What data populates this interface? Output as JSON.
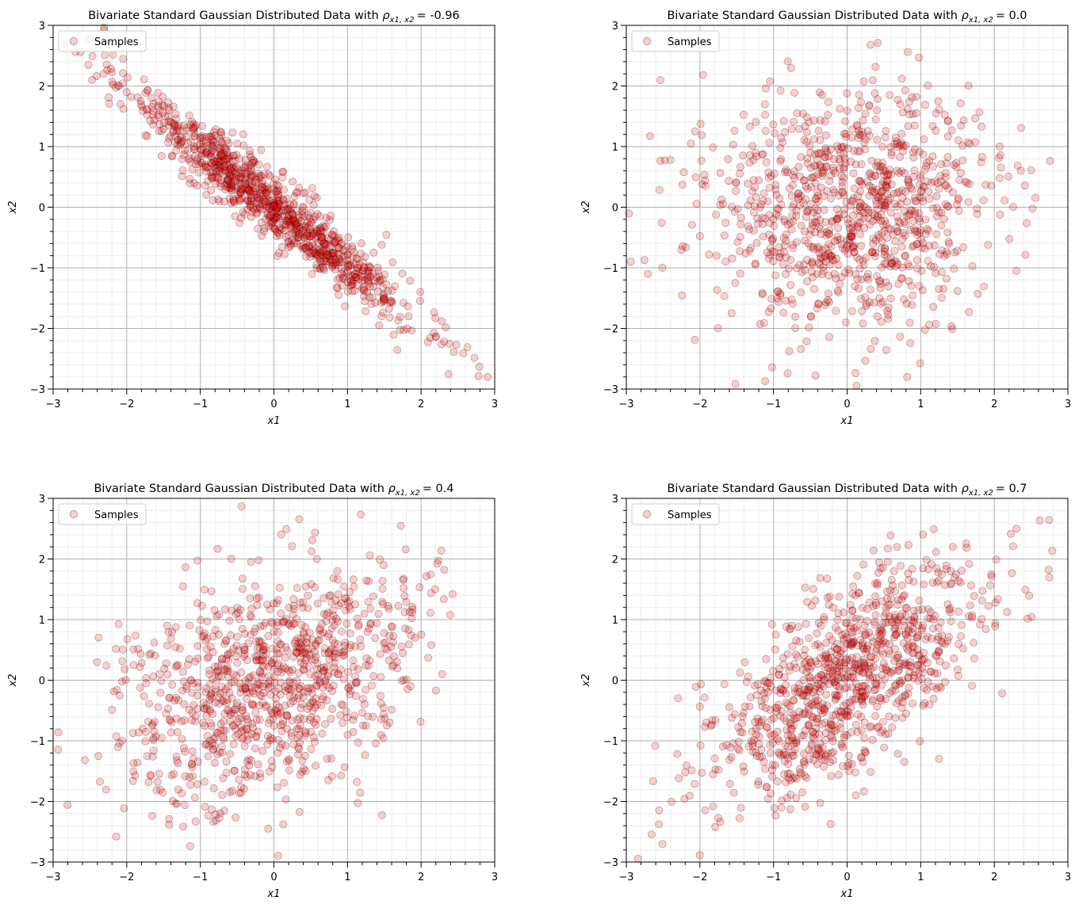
{
  "chart_data": [
    {
      "type": "scatter",
      "title_prefix": "Bivariate Standard Gaussian Distributed Data with ",
      "title_rho_symbol": "ρ",
      "title_rho_subscript": "x1, x2",
      "title_value": "= -0.96",
      "rho": -0.96,
      "n_points": 1000,
      "seed": 11,
      "xlabel": "x1",
      "ylabel": "x2",
      "xlim": [
        -3,
        3
      ],
      "ylim": [
        -3,
        3
      ],
      "legend": "Samples",
      "legend_position": "top-left",
      "grid": true
    },
    {
      "type": "scatter",
      "title_prefix": "Bivariate Standard Gaussian Distributed Data with ",
      "title_rho_symbol": "ρ",
      "title_rho_subscript": "x1, x2",
      "title_value": "= 0.0",
      "rho": 0.0,
      "n_points": 1000,
      "seed": 23,
      "xlabel": "x1",
      "ylabel": "x2",
      "xlim": [
        -3,
        3
      ],
      "ylim": [
        -3,
        3
      ],
      "legend": "Samples",
      "legend_position": "top-left",
      "grid": true
    },
    {
      "type": "scatter",
      "title_prefix": "Bivariate Standard Gaussian Distributed Data with ",
      "title_rho_symbol": "ρ",
      "title_rho_subscript": "x1, x2",
      "title_value": "= 0.4",
      "rho": 0.4,
      "n_points": 1000,
      "seed": 37,
      "xlabel": "x1",
      "ylabel": "x2",
      "xlim": [
        -3,
        3
      ],
      "ylim": [
        -3,
        3
      ],
      "legend": "Samples",
      "legend_position": "top-left",
      "grid": true
    },
    {
      "type": "scatter",
      "title_prefix": "Bivariate Standard Gaussian Distributed Data with ",
      "title_rho_symbol": "ρ",
      "title_rho_subscript": "x1, x2",
      "title_value": "= 0.7",
      "rho": 0.7,
      "n_points": 1000,
      "seed": 53,
      "xlabel": "x1",
      "ylabel": "x2",
      "xlim": [
        -3,
        3
      ],
      "ylim": [
        -3,
        3
      ],
      "legend": "Samples",
      "legend_position": "top-left",
      "grid": true
    }
  ],
  "ticks": [
    -3,
    -2,
    -1,
    0,
    1,
    2,
    3
  ],
  "tick_labels": [
    "−3",
    "−2",
    "−1",
    "0",
    "1",
    "2",
    "3"
  ],
  "colors": {
    "marker_fill": "#ff0000",
    "marker_edge": "#000000",
    "major_grid": "#b0b0b0",
    "minor_grid": "#ebebeb"
  }
}
